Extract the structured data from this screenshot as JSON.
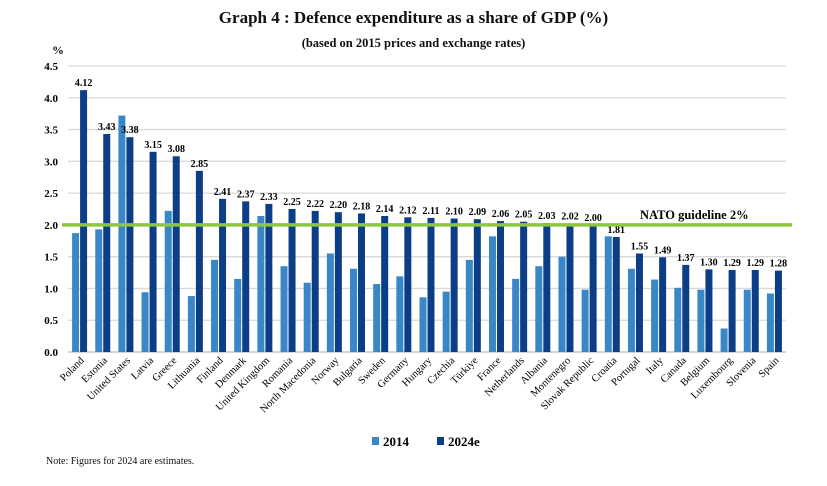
{
  "chart_data": {
    "type": "bar",
    "title": "Graph 4 : Defence expenditure as a share of GDP (%)",
    "subtitle": "(based on 2015 prices and exchange rates)",
    "ylabel": "%",
    "ylim": [
      0,
      4.5
    ],
    "yticks": [
      "0.0",
      "0.5",
      "1.0",
      "1.5",
      "2.0",
      "2.5",
      "3.0",
      "3.5",
      "4.0",
      "4.5"
    ],
    "grid": true,
    "legend_placement": "bottom",
    "categories": [
      "Poland",
      "Estonia",
      "United States",
      "Latvia",
      "Greece",
      "Lithuania",
      "Finland",
      "Denmark",
      "United Kingdom",
      "Romania",
      "North Macedonia",
      "Norway",
      "Bulgaria",
      "Sweden",
      "Germany",
      "Hungary",
      "Czechia",
      "Türkiye",
      "France",
      "Netherlands",
      "Albania",
      "Montenegro",
      "Slovak Republic",
      "Croatia",
      "Portugal",
      "Italy",
      "Canada",
      "Belgium",
      "Luxembourg",
      "Slovenia",
      "Spain"
    ],
    "series": [
      {
        "name": "2014",
        "color": "#3a87c8",
        "values": [
          1.87,
          1.93,
          3.72,
          0.94,
          2.22,
          0.88,
          1.45,
          1.15,
          2.14,
          1.35,
          1.09,
          1.55,
          1.31,
          1.07,
          1.19,
          0.86,
          0.95,
          1.45,
          1.82,
          1.15,
          1.35,
          1.5,
          0.98,
          1.82,
          1.31,
          1.14,
          1.01,
          0.98,
          0.37,
          0.98,
          0.92
        ]
      },
      {
        "name": "2024e",
        "color": "#0b3e86",
        "values": [
          4.12,
          3.43,
          3.38,
          3.15,
          3.08,
          2.85,
          2.41,
          2.37,
          2.33,
          2.25,
          2.22,
          2.2,
          2.18,
          2.14,
          2.12,
          2.11,
          2.1,
          2.09,
          2.06,
          2.05,
          2.03,
          2.02,
          2.0,
          1.81,
          1.55,
          1.49,
          1.37,
          1.3,
          1.29,
          1.29,
          1.28
        ],
        "labels": [
          "4.12",
          "3.43",
          "3.38",
          "3.15",
          "3.08",
          "2.85",
          "2.41",
          "2.37",
          "2.33",
          "2.25",
          "2.22",
          "2.20",
          "2.18",
          "2.14",
          "2.12",
          "2.11",
          "2.10",
          "2.09",
          "2.06",
          "2.05",
          "2.03",
          "2.02",
          "2.00",
          "1.81",
          "1.55",
          "1.49",
          "1.37",
          "1.30",
          "1.29",
          "1.29",
          "1.28"
        ]
      }
    ],
    "reference_line": {
      "value": 2.0,
      "label": "NATO guideline 2%",
      "color": "#8dc63f"
    }
  },
  "note": "Note: Figures for 2024 are estimates."
}
